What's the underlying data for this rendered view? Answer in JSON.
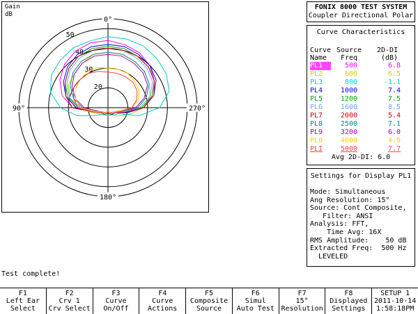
{
  "title": {
    "line1": "FONIX 8000 TEST SYSTEM",
    "line2": "Coupler Directional Polar"
  },
  "plot": {
    "ylabel_line1": "Gain",
    "ylabel_line2": "dB",
    "angle_labels": {
      "top": "0°",
      "right": "270°",
      "bottom": "180°",
      "left": "90°"
    },
    "ring_labels": [
      "20",
      "30",
      "40",
      "50"
    ]
  },
  "chart_data": {
    "type": "line",
    "subtype": "polar",
    "angles_deg": [
      0,
      15,
      30,
      45,
      60,
      75,
      90,
      105,
      120,
      135,
      150,
      165,
      180,
      195,
      210,
      225,
      240,
      255,
      270,
      285,
      300,
      315,
      330,
      345
    ],
    "r_range": [
      10,
      55
    ],
    "rings": [
      20,
      30,
      40,
      50
    ],
    "series": [
      {
        "name": "PL1",
        "color": "#ff00ff",
        "values": [
          44,
          44,
          43,
          41,
          38,
          34,
          28,
          18,
          14,
          14,
          13,
          13,
          13,
          13,
          13,
          14,
          14,
          18,
          28,
          33,
          37,
          40,
          42,
          43
        ]
      },
      {
        "name": "PL2",
        "color": "#cccc00",
        "values": [
          38,
          38,
          36,
          34,
          33,
          30,
          25,
          19,
          16,
          15,
          14,
          14,
          14,
          14,
          14,
          16,
          18,
          22,
          28,
          32,
          34,
          36,
          37,
          38
        ]
      },
      {
        "name": "PL3",
        "color": "#00cccc",
        "values": [
          46,
          45,
          45,
          44,
          43,
          40,
          34,
          26,
          18,
          15,
          14,
          14,
          13,
          14,
          14,
          15,
          16,
          26,
          36,
          42,
          44,
          45,
          46,
          46
        ]
      },
      {
        "name": "PL4",
        "color": "#0000ff",
        "values": [
          42,
          42,
          41,
          39,
          36,
          32,
          26,
          18,
          15,
          14,
          14,
          13,
          13,
          13,
          14,
          14,
          15,
          20,
          28,
          34,
          38,
          40,
          41,
          42
        ]
      },
      {
        "name": "PL5",
        "color": "#00aa00",
        "values": [
          41,
          41,
          40,
          38,
          35,
          31,
          25,
          18,
          15,
          14,
          14,
          13,
          13,
          13,
          14,
          14,
          15,
          19,
          27,
          33,
          37,
          39,
          40,
          41
        ]
      },
      {
        "name": "PL6",
        "color": "#66aaff",
        "values": [
          40,
          40,
          39,
          37,
          34,
          30,
          24,
          17,
          14,
          14,
          13,
          13,
          13,
          13,
          13,
          14,
          15,
          18,
          26,
          32,
          36,
          38,
          39,
          40
        ]
      },
      {
        "name": "PL7",
        "color": "#cc0000",
        "values": [
          40,
          40,
          40,
          38,
          35,
          32,
          28,
          18,
          14,
          14,
          13,
          13,
          13,
          13,
          14,
          14,
          15,
          19,
          28,
          34,
          37,
          39,
          40,
          40
        ]
      },
      {
        "name": "PL8",
        "color": "#008888",
        "values": [
          38,
          38,
          37,
          35,
          32,
          28,
          23,
          17,
          14,
          13,
          13,
          13,
          13,
          13,
          13,
          14,
          15,
          17,
          25,
          30,
          34,
          36,
          37,
          38
        ]
      },
      {
        "name": "PL9",
        "color": "#aa00aa",
        "values": [
          37,
          37,
          36,
          34,
          31,
          27,
          22,
          16,
          14,
          13,
          13,
          12,
          12,
          12,
          13,
          13,
          14,
          16,
          24,
          29,
          33,
          35,
          36,
          37
        ]
      },
      {
        "name": "PL0",
        "color": "#ffcc00",
        "values": [
          30,
          31,
          31,
          30,
          29,
          27,
          24,
          17,
          14,
          13,
          13,
          12,
          12,
          12,
          13,
          13,
          14,
          16,
          22,
          26,
          28,
          29,
          30,
          30
        ]
      },
      {
        "name": "PLI",
        "color": "#ff4444",
        "values": [
          28,
          29,
          30,
          30,
          30,
          28,
          25,
          18,
          15,
          14,
          13,
          13,
          12,
          13,
          13,
          14,
          15,
          17,
          22,
          25,
          27,
          28,
          28,
          28
        ]
      }
    ]
  },
  "cc": {
    "header": "Curve Characteristics",
    "col1a": "Curve",
    "col1b": "Name",
    "col2a": "Source",
    "col2b": "Freq",
    "col3a": "2D-DI",
    "col3b": "(dB)",
    "rows": [
      {
        "name": "PL1",
        "freq": "500",
        "val": "6.8",
        "color": "#ff00ff"
      },
      {
        "name": "PL2",
        "freq": "600",
        "val": "6.5",
        "color": "#cccc00"
      },
      {
        "name": "PL3",
        "freq": "800",
        "val": "-1.1",
        "color": "#00cccc"
      },
      {
        "name": "PL4",
        "freq": "1000",
        "val": "7.4",
        "color": "#0000ff"
      },
      {
        "name": "PL5",
        "freq": "1200",
        "val": "7.5",
        "color": "#00aa00"
      },
      {
        "name": "PL6",
        "freq": "1600",
        "val": "8.5",
        "color": "#66aaff"
      },
      {
        "name": "PL7",
        "freq": "2000",
        "val": "5.4",
        "color": "#cc0000"
      },
      {
        "name": "PL8",
        "freq": "2500",
        "val": "7.1",
        "color": "#008888"
      },
      {
        "name": "PL9",
        "freq": "3200",
        "val": "6.0",
        "color": "#aa00aa"
      },
      {
        "name": "PL0",
        "freq": "4000",
        "val": "4.9",
        "color": "#ffcc00"
      },
      {
        "name": "PLI",
        "freq": "5000",
        "val": "7.7",
        "color": "#ff4444"
      }
    ],
    "avg": "Avg 2D-DI:  6.0"
  },
  "settings": {
    "header": "Settings for Display PL1",
    "lines": [
      "Mode: Simultaneous",
      "Ang Resolution: 15°",
      "Source: Cont Composite,",
      "   Filter: ANSI",
      "Analysis: FFT,",
      "    Time Avg: 16X",
      "RMS Amplitude:    50 dB",
      "Extracted Freq:  500 Hz",
      "  LEVELED"
    ]
  },
  "status": "Test complete!",
  "fkeys": [
    {
      "fn": "F1",
      "l1": "Left Ear",
      "l2": "Select"
    },
    {
      "fn": "F2",
      "l1": "Crv 1",
      "l2": "Crv Select"
    },
    {
      "fn": "F3",
      "l1": "Curve",
      "l2": "On/Off"
    },
    {
      "fn": "F4",
      "l1": "Curve",
      "l2": "Actions"
    },
    {
      "fn": "F5",
      "l1": "Composite",
      "l2": "Source"
    },
    {
      "fn": "F6",
      "l1": "Simul",
      "l2": "Auto Test"
    },
    {
      "fn": "F7",
      "l1": "15°",
      "l2": "Resolution"
    },
    {
      "fn": "F8",
      "l1": "Displayed",
      "l2": "Settings"
    },
    {
      "fn": "SETUP 1",
      "l1": "2011-10-14",
      "l2": "1:58:18PM"
    }
  ]
}
